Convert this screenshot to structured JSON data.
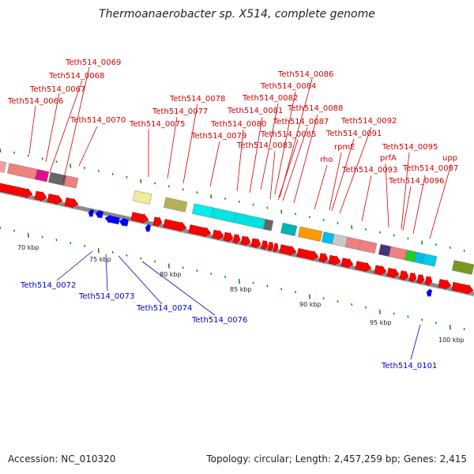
{
  "title": "Thermoanaerobacter sp. X514, complete genome",
  "footer": {
    "accession": "Accession: NC_010320",
    "summary": "Topology: circular; Length: 2,457,259 bp; Genes: 2,415"
  },
  "map": {
    "backbone_color": "#999999",
    "forward_gene_color": "#ff0000",
    "reverse_gene_color": "#0000ff",
    "top_label_color": "#d40000",
    "bottom_label_color": "#0000cc",
    "tick_color": "#008800",
    "kbp_labels": [
      "70 kbp",
      "75 kbp",
      "80 kbp",
      "85 kbp",
      "90 kbp",
      "95 kbp",
      "100 kbp"
    ],
    "top_labels": [
      "Teth514_0069",
      "Teth514_0068",
      "Teth514_0067",
      "Teth514_0066",
      "Teth514_0070",
      "Teth514_0078",
      "Teth514_0077",
      "Teth514_0075",
      "Teth514_0086",
      "Teth514_0084",
      "Teth514_0082",
      "Teth514_0081",
      "Teth514_0080",
      "Teth514_0079",
      "Teth514_0088",
      "Teth514_0087",
      "Teth514_0085",
      "Teth514_0083",
      "Teth514_0092",
      "Teth514_0091",
      "rpmE",
      "rho",
      "Teth514_0093",
      "Teth514_0095",
      "prfA",
      "upp",
      "Teth514_0097",
      "Teth514_0096"
    ],
    "bottom_labels": [
      "Teth514_0072",
      "Teth514_0073",
      "Teth514_0074",
      "Teth514_0076",
      "Teth514_0101"
    ]
  }
}
